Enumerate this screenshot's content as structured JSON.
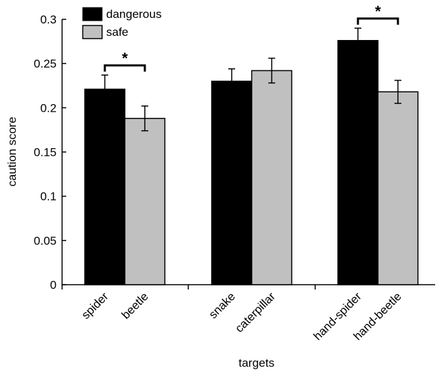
{
  "chart_data": {
    "type": "bar",
    "xlabel": "targets",
    "ylabel": "caution score",
    "ylim": [
      0,
      0.3
    ],
    "yticks": [
      "0",
      "0.05",
      "0.1",
      "0.15",
      "0.2",
      "0.25",
      "0.3"
    ],
    "groups": [
      {
        "bars": [
          {
            "label": "spider",
            "series": "dangerous",
            "value": 0.221,
            "error": 0.016
          },
          {
            "label": "beetle",
            "series": "safe",
            "value": 0.188,
            "error": 0.014
          }
        ],
        "significance": "*"
      },
      {
        "bars": [
          {
            "label": "snake",
            "series": "dangerous",
            "value": 0.23,
            "error": 0.014
          },
          {
            "label": "caterpillar",
            "series": "safe",
            "value": 0.242,
            "error": 0.014
          }
        ],
        "significance": ""
      },
      {
        "bars": [
          {
            "label": "hand-spider",
            "series": "dangerous",
            "value": 0.276,
            "error": 0.014
          },
          {
            "label": "hand-beetle",
            "series": "safe",
            "value": 0.218,
            "error": 0.013
          }
        ],
        "significance": "*"
      }
    ],
    "legend": {
      "position": "top-left",
      "entries": [
        {
          "name": "dangerous",
          "color": "#000000"
        },
        {
          "name": "safe",
          "color": "#c0c0c0"
        }
      ]
    },
    "grid": false
  }
}
